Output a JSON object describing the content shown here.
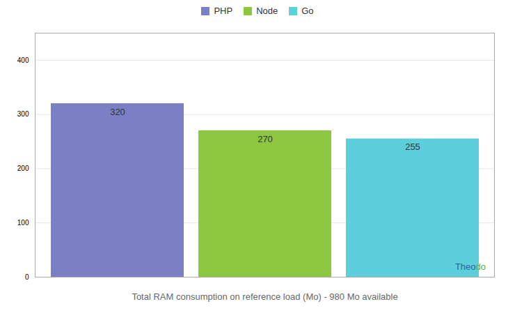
{
  "chart_data": {
    "type": "bar",
    "categories": [
      "PHP",
      "Node",
      "Go"
    ],
    "values": [
      320,
      270,
      255
    ],
    "colors": [
      "#7b7fc4",
      "#8dc63f",
      "#5dcfda"
    ],
    "xlabel": "Total RAM consumption on reference load (Mo) - 980 Mo available",
    "ylim": [
      0,
      450
    ],
    "yticks": [
      0,
      100,
      200,
      300,
      400
    ],
    "grid": true,
    "legend": "top",
    "data_labels": true,
    "tick_labels": "y",
    "annotations": [
      {
        "text": "Theo",
        "color": "#2b5fa5"
      },
      {
        "text": "do",
        "color": "#4caf50"
      }
    ]
  }
}
